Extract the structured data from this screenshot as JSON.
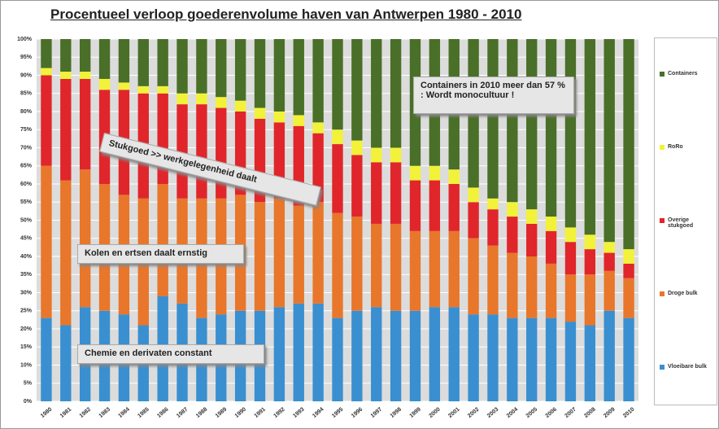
{
  "chart_data": {
    "type": "stacked_bar",
    "title": "Procentueel verloop goederenvolume haven van Antwerpen 1980 - 2010",
    "categories": [
      "1980",
      "1981",
      "1982",
      "1983",
      "1984",
      "1985",
      "1986",
      "1987",
      "1988",
      "1989",
      "1990",
      "1991",
      "1992",
      "1993",
      "1994",
      "1995",
      "1996",
      "1997",
      "1998",
      "1999",
      "2000",
      "2001",
      "2002",
      "2003",
      "2004",
      "2005",
      "2006",
      "2007",
      "2008",
      "2009",
      "2010"
    ],
    "series": [
      {
        "name": "Vloeibare bulk",
        "color": "#3a8fd0",
        "values": [
          23,
          21,
          26,
          25,
          24,
          21,
          29,
          27,
          23,
          24,
          25,
          25,
          26,
          27,
          27,
          23,
          25,
          26,
          25,
          25,
          26,
          26,
          24,
          24,
          23,
          23,
          23,
          22,
          21,
          25,
          23
        ]
      },
      {
        "name": "Droge bulk",
        "color": "#e8762b",
        "values": [
          42,
          40,
          38,
          35,
          33,
          35,
          31,
          29,
          33,
          32,
          32,
          30,
          30,
          27,
          28,
          29,
          26,
          23,
          24,
          22,
          21,
          21,
          21,
          19,
          18,
          17,
          15,
          13,
          14,
          11,
          11
        ]
      },
      {
        "name": "Overige stukgoed",
        "color": "#e0262b",
        "values": [
          25,
          28,
          25,
          26,
          29,
          29,
          25,
          26,
          26,
          25,
          23,
          23,
          21,
          22,
          19,
          19,
          17,
          17,
          17,
          14,
          14,
          13,
          10,
          10,
          10,
          9,
          9,
          9,
          7,
          5,
          4
        ]
      },
      {
        "name": "RoRo",
        "color": "#f2f23a",
        "values": [
          2,
          2,
          2,
          3,
          2,
          2,
          2,
          3,
          3,
          3,
          3,
          3,
          3,
          3,
          3,
          4,
          4,
          4,
          4,
          4,
          4,
          4,
          4,
          3,
          4,
          4,
          4,
          4,
          4,
          3,
          4
        ]
      },
      {
        "name": "Containers",
        "color": "#4a6f28",
        "values": [
          8,
          9,
          9,
          11,
          12,
          13,
          13,
          15,
          15,
          16,
          17,
          19,
          20,
          21,
          23,
          25,
          28,
          30,
          30,
          35,
          35,
          36,
          41,
          44,
          45,
          47,
          49,
          52,
          54,
          56,
          58
        ]
      }
    ],
    "ylim": [
      0,
      100
    ],
    "yticks": [
      {
        "value": 0,
        "label": "0%"
      },
      {
        "value": 5,
        "label": "5%"
      },
      {
        "value": 10,
        "label": "10%"
      },
      {
        "value": 15,
        "label": "15%"
      },
      {
        "value": 20,
        "label": "20%"
      },
      {
        "value": 25,
        "label": "25%"
      },
      {
        "value": 30,
        "label": "30%"
      },
      {
        "value": 35,
        "label": "35%"
      },
      {
        "value": 40,
        "label": "40%"
      },
      {
        "value": 45,
        "label": "45%"
      },
      {
        "value": 50,
        "label": "50%"
      },
      {
        "value": 55,
        "label": "55%"
      },
      {
        "value": 60,
        "label": "60%"
      },
      {
        "value": 65,
        "label": "65%"
      },
      {
        "value": 70,
        "label": "70%"
      },
      {
        "value": 75,
        "label": "75%"
      },
      {
        "value": 80,
        "label": "80%"
      },
      {
        "value": 85,
        "label": "85%"
      },
      {
        "value": 90,
        "label": "90%"
      },
      {
        "value": 95,
        "label": "95%"
      },
      {
        "value": 100,
        "label": "100%"
      }
    ],
    "grid": true,
    "legend": "right",
    "annotations": [
      "Containers in 2010 meer dan 57 % : Wordt monocultuur !",
      "Stukgoed >> werkgelegenheid daalt",
      "Kolen en ertsen daalt ernstig",
      "Chemie en derivaten constant"
    ]
  }
}
